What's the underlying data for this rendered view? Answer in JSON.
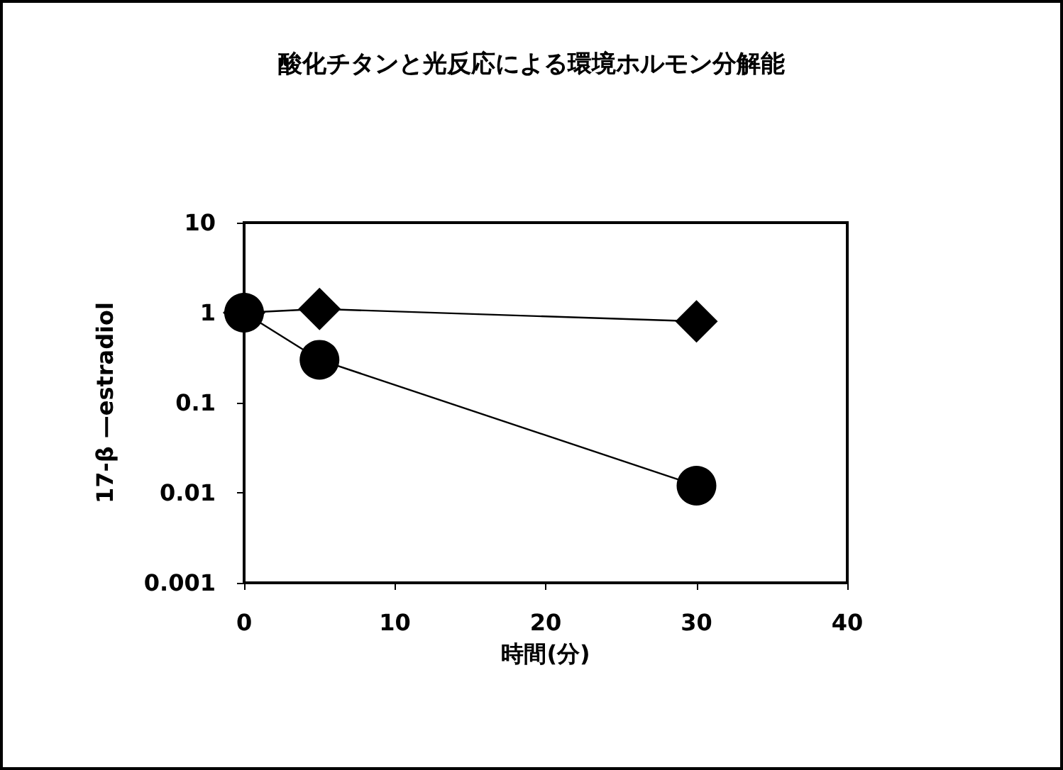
{
  "chart_data": {
    "type": "line",
    "title": "酸化チタンと光反応による環境ホルモン分解能",
    "xlabel": "時間(分)",
    "ylabel": "17-β —estradiol",
    "x": [
      0,
      5,
      30
    ],
    "series": [
      {
        "color": "#000000",
        "marker": "diamond",
        "values": [
          1,
          1.1,
          0.8
        ]
      },
      {
        "color": "#000000",
        "marker": "circle",
        "values": [
          1,
          0.3,
          0.012
        ]
      }
    ],
    "xlim": [
      0,
      40
    ],
    "xticks": [
      0,
      10,
      20,
      30,
      40
    ],
    "ylim": [
      0.001,
      10
    ],
    "yticks": [
      0.001,
      0.01,
      0.1,
      1,
      10
    ],
    "log": "y",
    "grid": false,
    "line_style": "solid"
  }
}
